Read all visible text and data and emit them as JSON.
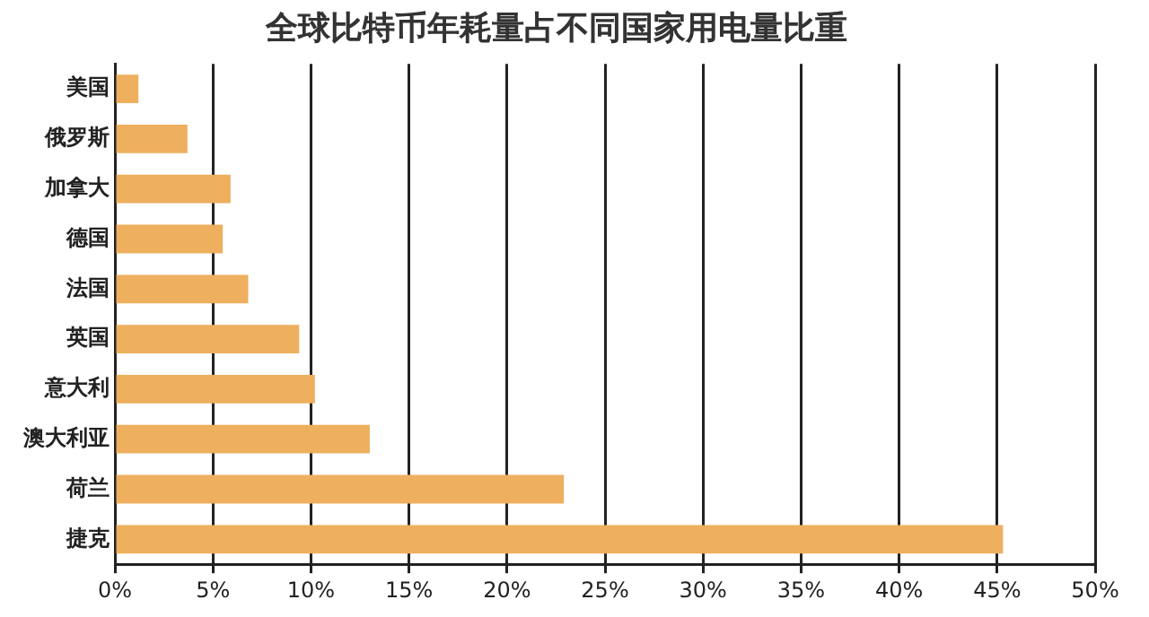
{
  "chart_data": {
    "type": "bar",
    "orientation": "horizontal",
    "title": "全球比特币年耗量占不同国家用电量比重",
    "categories": [
      "美国",
      "俄罗斯",
      "加拿大",
      "德国",
      "法国",
      "英国",
      "意大利",
      "澳大利亚",
      "荷兰",
      "捷克"
    ],
    "values": [
      1.2,
      3.7,
      5.9,
      5.5,
      6.8,
      9.4,
      10.2,
      13.0,
      22.9,
      45.3
    ],
    "color": "#eeaf5e",
    "xlim": [
      0,
      50
    ],
    "xticks": [
      {
        "value": 0,
        "label": "0%"
      },
      {
        "value": 5,
        "label": "5%"
      },
      {
        "value": 10,
        "label": "10%"
      },
      {
        "value": 15,
        "label": "15%"
      },
      {
        "value": 20,
        "label": "20%"
      },
      {
        "value": 25,
        "label": "25%"
      },
      {
        "value": 30,
        "label": "30%"
      },
      {
        "value": 35,
        "label": "35%"
      },
      {
        "value": 40,
        "label": "40%"
      },
      {
        "value": 45,
        "label": "45%"
      },
      {
        "value": 50,
        "label": "50%"
      }
    ],
    "grid": "x",
    "legend": false
  }
}
